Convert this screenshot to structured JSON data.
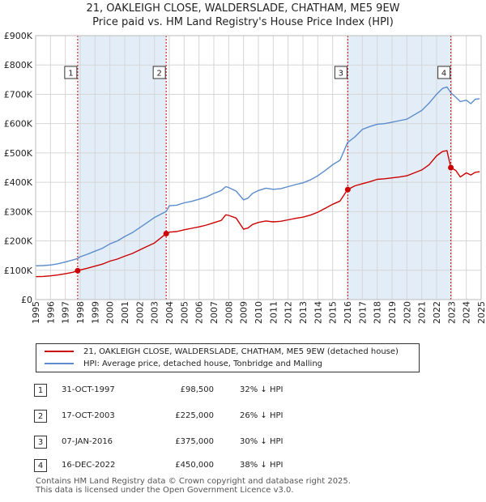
{
  "title_line1": "21, OAKLEIGH CLOSE, WALDERSLADE, CHATHAM, ME5 9EW",
  "title_line2": "Price paid vs. HM Land Registry's House Price Index (HPI)",
  "legend": {
    "series1": "21, OAKLEIGH CLOSE, WALDERSLADE, CHATHAM, ME5 9EW (detached house)",
    "series2": "HPI: Average price, detached house, Tonbridge and Malling"
  },
  "colors": {
    "red": "#cc0000",
    "blue": "#5b8ccc",
    "grid": "#d6d6d6",
    "shade": "#dce8f5"
  },
  "sales": [
    {
      "num": "1",
      "date": "31-OCT-1997",
      "price": "£98,500",
      "hpi": "32% ↓ HPI"
    },
    {
      "num": "2",
      "date": "17-OCT-2003",
      "price": "£225,000",
      "hpi": "26% ↓ HPI"
    },
    {
      "num": "3",
      "date": "07-JAN-2016",
      "price": "£375,000",
      "hpi": "30% ↓ HPI"
    },
    {
      "num": "4",
      "date": "16-DEC-2022",
      "price": "£450,000",
      "hpi": "38% ↓ HPI"
    }
  ],
  "footer": {
    "line1": "Contains HM Land Registry data © Crown copyright and database right 2025.",
    "line2": "This data is licensed under the Open Government Licence v3.0."
  },
  "chart_data": {
    "type": "line",
    "title": "21, OAKLEIGH CLOSE, WALDERSLADE, CHATHAM, ME5 9EW",
    "subtitle": "Price paid vs. HM Land Registry's House Price Index (HPI)",
    "xlabel": "",
    "ylabel": "",
    "xlim": [
      1995,
      2025
    ],
    "ylim": [
      0,
      900000
    ],
    "y_ticks": [
      0,
      100000,
      200000,
      300000,
      400000,
      500000,
      600000,
      700000,
      800000,
      900000
    ],
    "y_tick_labels": [
      "£0",
      "£100K",
      "£200K",
      "£300K",
      "£400K",
      "£500K",
      "£600K",
      "£700K",
      "£800K",
      "£900K"
    ],
    "x_ticks": [
      1995,
      1996,
      1997,
      1998,
      1999,
      2000,
      2001,
      2002,
      2003,
      2004,
      2005,
      2006,
      2007,
      2008,
      2009,
      2010,
      2011,
      2012,
      2013,
      2014,
      2015,
      2016,
      2017,
      2018,
      2019,
      2020,
      2021,
      2022,
      2023,
      2024,
      2025
    ],
    "x_tick_labels": [
      "1995",
      "1996",
      "1997",
      "1998",
      "1999",
      "2000",
      "2001",
      "2002",
      "2003",
      "2004",
      "2005",
      "2006",
      "2007",
      "2008",
      "2009",
      "2010",
      "2011",
      "2012",
      "2013",
      "2014",
      "2015",
      "2016",
      "2017",
      "2018",
      "2019",
      "2020",
      "2021",
      "2022",
      "2023",
      "2024",
      "2025"
    ],
    "grid": true,
    "legend_position": "below",
    "shaded_periods": [
      [
        1997.83,
        2003.79
      ],
      [
        2016.02,
        2022.96
      ]
    ],
    "series": [
      {
        "name": "HPI: Average price, detached house, Tonbridge and Malling",
        "color": "#5b8ccc",
        "x": [
          1995,
          1995.5,
          1996,
          1996.5,
          1997,
          1997.5,
          1997.83,
          1998,
          1998.5,
          1999,
          1999.5,
          2000,
          2000.5,
          2001,
          2001.5,
          2002,
          2002.5,
          2003,
          2003.5,
          2003.79,
          2004,
          2004.5,
          2005,
          2005.5,
          2006,
          2006.5,
          2007,
          2007.5,
          2007.8,
          2008,
          2008.5,
          2009,
          2009.3,
          2009.6,
          2010,
          2010.5,
          2011,
          2011.5,
          2012,
          2012.5,
          2013,
          2013.5,
          2014,
          2014.5,
          2015,
          2015.5,
          2016,
          2016.5,
          2017,
          2017.5,
          2018,
          2018.5,
          2019,
          2019.5,
          2020,
          2020.5,
          2021,
          2021.5,
          2022,
          2022.4,
          2022.7,
          2022.96,
          2023.3,
          2023.6,
          2024,
          2024.3,
          2024.6,
          2024.9
        ],
        "y": [
          115000,
          116000,
          118000,
          122000,
          128000,
          135000,
          140000,
          146000,
          155000,
          165000,
          175000,
          190000,
          200000,
          215000,
          228000,
          245000,
          262000,
          280000,
          293000,
          300000,
          320000,
          322000,
          330000,
          335000,
          342000,
          350000,
          362000,
          372000,
          385000,
          382000,
          370000,
          340000,
          346000,
          362000,
          372000,
          380000,
          376000,
          378000,
          385000,
          392000,
          398000,
          408000,
          422000,
          440000,
          460000,
          475000,
          535000,
          555000,
          580000,
          590000,
          598000,
          600000,
          605000,
          610000,
          615000,
          630000,
          645000,
          670000,
          700000,
          720000,
          725000,
          705000,
          690000,
          675000,
          680000,
          668000,
          683000,
          685000
        ]
      },
      {
        "name": "21, OAKLEIGH CLOSE, WALDERSLADE, CHATHAM, ME5 9EW (detached house)",
        "color": "#cc0000",
        "x": [
          1995,
          1995.5,
          1996,
          1996.5,
          1997,
          1997.5,
          1997.83,
          1998,
          1998.5,
          1999,
          1999.5,
          2000,
          2000.5,
          2001,
          2001.5,
          2002,
          2002.5,
          2003,
          2003.5,
          2003.79,
          2004,
          2004.5,
          2005,
          2005.5,
          2006,
          2006.5,
          2007,
          2007.5,
          2007.8,
          2008,
          2008.5,
          2009,
          2009.3,
          2009.6,
          2010,
          2010.5,
          2011,
          2011.5,
          2012,
          2012.5,
          2013,
          2013.5,
          2014,
          2014.5,
          2015,
          2015.5,
          2016,
          2016.5,
          2017,
          2017.5,
          2018,
          2018.5,
          2019,
          2019.5,
          2020,
          2020.5,
          2021,
          2021.5,
          2022,
          2022.4,
          2022.7,
          2022.96,
          2023.3,
          2023.6,
          2024,
          2024.3,
          2024.6,
          2024.9
        ],
        "y": [
          78000,
          79000,
          81000,
          84000,
          88000,
          93000,
          98500,
          101000,
          107000,
          114000,
          121000,
          131000,
          138000,
          148000,
          157000,
          169000,
          181000,
          193000,
          213000,
          225000,
          230000,
          232000,
          238000,
          243000,
          248000,
          254000,
          262000,
          270000,
          289000,
          287000,
          278000,
          240000,
          244000,
          256000,
          263000,
          268000,
          265000,
          267000,
          272000,
          277000,
          281000,
          288000,
          298000,
          311000,
          325000,
          336000,
          375000,
          388000,
          395000,
          402000,
          410000,
          412000,
          415000,
          418000,
          422000,
          432000,
          442000,
          460000,
          490000,
          505000,
          508000,
          450000,
          440000,
          418000,
          432000,
          425000,
          434000,
          436000
        ]
      }
    ],
    "sale_points": [
      {
        "label": "1",
        "x": 1997.83,
        "y": 98500
      },
      {
        "label": "2",
        "x": 2003.79,
        "y": 225000
      },
      {
        "label": "3",
        "x": 2016.02,
        "y": 375000
      },
      {
        "label": "4",
        "x": 2022.96,
        "y": 450000
      }
    ]
  }
}
